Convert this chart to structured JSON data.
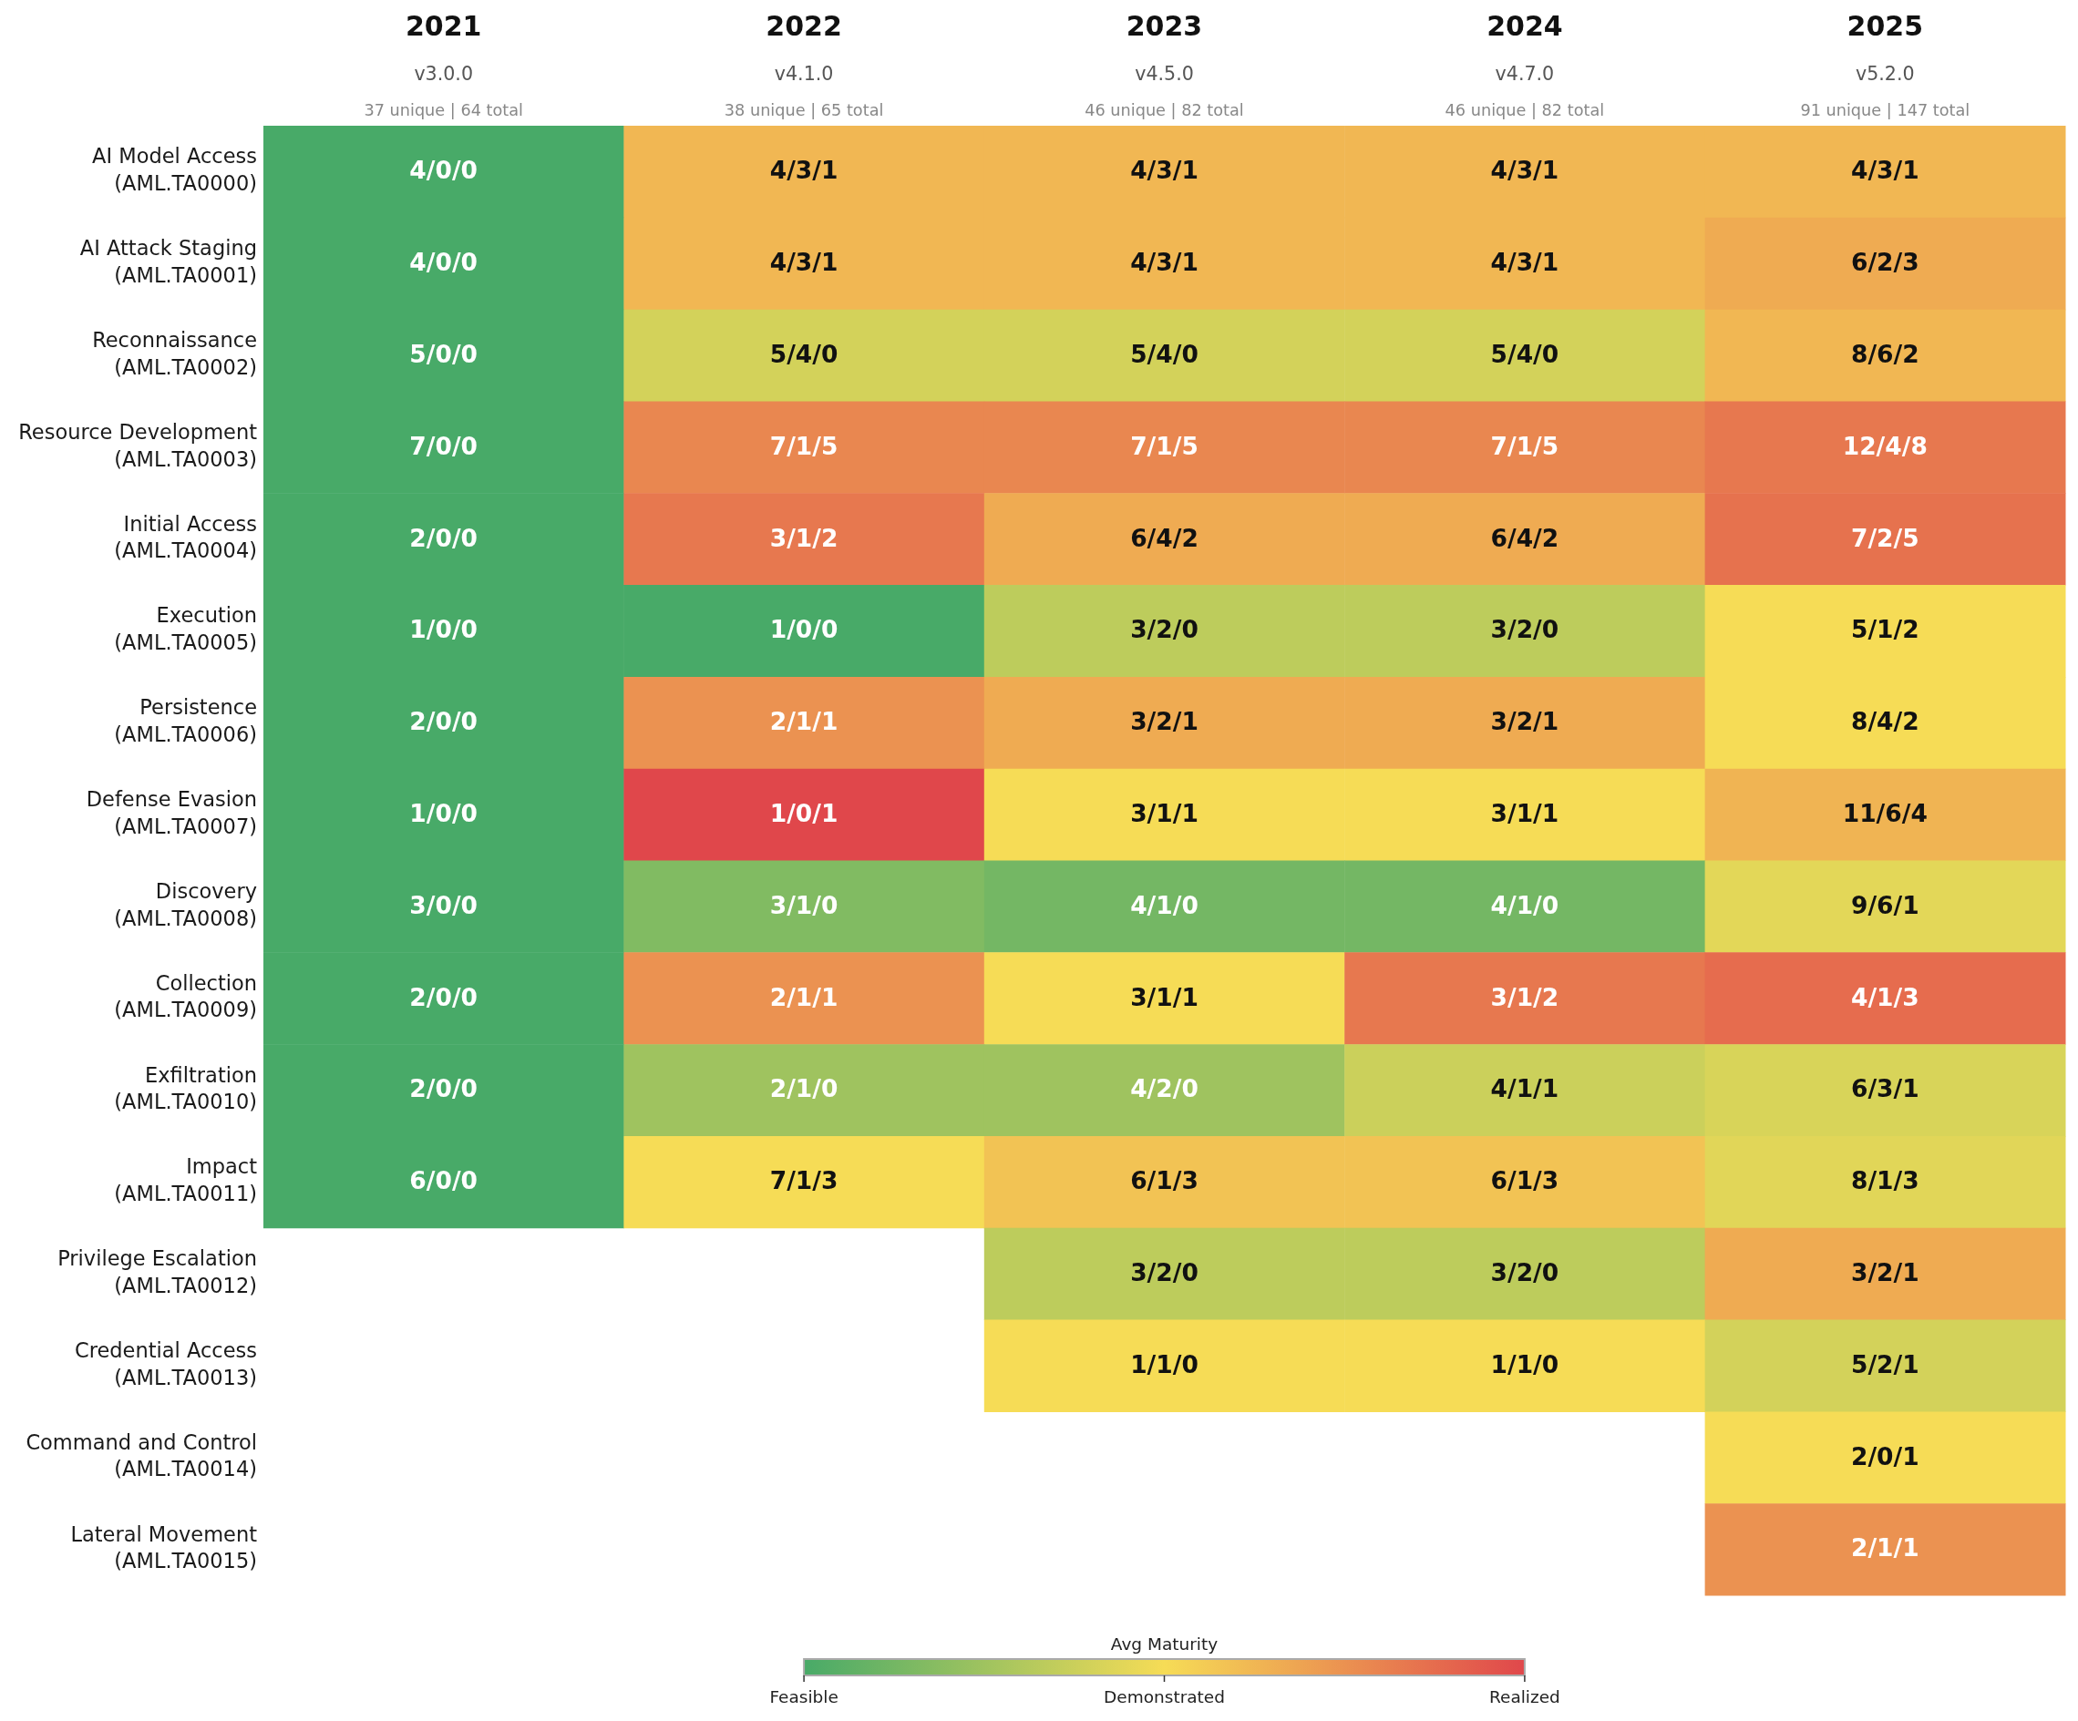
{
  "chart_data": {
    "type": "heatmap",
    "categories": [
      "2021",
      "2022",
      "2023",
      "2024",
      "2025"
    ],
    "y_categories": [
      "AI Model Access\n(AML.TA0000)",
      "AI Attack Staging\n(AML.TA0001)",
      "Reconnaissance\n(AML.TA0002)",
      "Resource Development\n(AML.TA0003)",
      "Initial Access\n(AML.TA0004)",
      "Execution\n(AML.TA0005)",
      "Persistence\n(AML.TA0006)",
      "Defense Evasion\n(AML.TA0007)",
      "Discovery\n(AML.TA0008)",
      "Collection\n(AML.TA0009)",
      "Exfiltration\n(AML.TA0010)",
      "Impact\n(AML.TA0011)",
      "Privilege Escalation\n(AML.TA0012)",
      "Credential Access\n(AML.TA0013)",
      "Command and Control\n(AML.TA0014)",
      "Lateral Movement\n(AML.TA0015)"
    ],
    "cells": [
      [
        0,
        1.25,
        1.25,
        1.25,
        1.25
      ],
      [
        0,
        1.25,
        1.25,
        1.25,
        1.33
      ],
      [
        0,
        0.8,
        0.8,
        0.8,
        1.25
      ],
      [
        0,
        1.57,
        1.57,
        1.57,
        1.67
      ],
      [
        0,
        1.67,
        1.33,
        1.33,
        1.71
      ],
      [
        0,
        0,
        0.67,
        0.67,
        1.0
      ],
      [
        0,
        1.5,
        1.33,
        1.33,
        1.0
      ],
      [
        0,
        2.0,
        1.0,
        1.0,
        1.27
      ],
      [
        0,
        0.33,
        0.25,
        0.25,
        0.89
      ],
      [
        0,
        1.5,
        1.0,
        1.67,
        1.75
      ],
      [
        0,
        0.5,
        0.5,
        0.75,
        0.83
      ],
      [
        0,
        1.0,
        1.17,
        1.17,
        0.88
      ],
      [
        null,
        null,
        0.67,
        0.67,
        1.33
      ],
      [
        null,
        null,
        1.0,
        1.0,
        0.8
      ],
      [
        null,
        null,
        null,
        null,
        1.0
      ],
      [
        null,
        null,
        null,
        null,
        1.5
      ]
    ],
    "cell_labels": [
      [
        "4/0/0",
        "4/3/1",
        "4/3/1",
        "4/3/1",
        "4/3/1"
      ],
      [
        "4/0/0",
        "4/3/1",
        "4/3/1",
        "4/3/1",
        "6/2/3"
      ],
      [
        "5/0/0",
        "5/4/0",
        "5/4/0",
        "5/4/0",
        "8/6/2"
      ],
      [
        "7/0/0",
        "7/1/5",
        "7/1/5",
        "7/1/5",
        "12/4/8"
      ],
      [
        "2/0/0",
        "3/1/2",
        "6/4/2",
        "6/4/2",
        "7/2/5"
      ],
      [
        "1/0/0",
        "1/0/0",
        "3/2/0",
        "3/2/0",
        "5/1/2"
      ],
      [
        "2/0/0",
        "2/1/1",
        "3/2/1",
        "3/2/1",
        "8/4/2"
      ],
      [
        "1/0/0",
        "1/0/1",
        "3/1/1",
        "3/1/1",
        "11/6/4"
      ],
      [
        "3/0/0",
        "3/1/0",
        "4/1/0",
        "4/1/0",
        "9/6/1"
      ],
      [
        "2/0/0",
        "2/1/1",
        "3/1/1",
        "3/1/2",
        "4/1/3"
      ],
      [
        "2/0/0",
        "2/1/0",
        "4/2/0",
        "4/1/1",
        "6/3/1"
      ],
      [
        "6/0/0",
        "7/1/3",
        "6/1/3",
        "6/1/3",
        "8/1/3"
      ],
      [
        null,
        null,
        "3/2/0",
        "3/2/0",
        "3/2/1"
      ],
      [
        null,
        null,
        "1/1/0",
        "1/1/0",
        "5/2/1"
      ],
      [
        null,
        null,
        null,
        null,
        "2/0/1"
      ],
      [
        null,
        null,
        null,
        null,
        "2/1/1"
      ]
    ],
    "clabel": "Avg Maturity",
    "clim": [
      0,
      2
    ],
    "cticks": [
      {
        "value": 0,
        "label": "Feasible"
      },
      {
        "value": 1,
        "label": "Demonstrated"
      },
      {
        "value": 2,
        "label": "Realized"
      }
    ],
    "annotations": [
      "v3.0.0",
      "v4.1.0",
      "v4.5.0",
      "v4.7.0",
      "v5.2.0",
      "37 unique | 64 total",
      "38 unique | 65 total",
      "46 unique | 82 total",
      "46 unique | 82 total",
      "91 unique | 147 total"
    ]
  }
}
